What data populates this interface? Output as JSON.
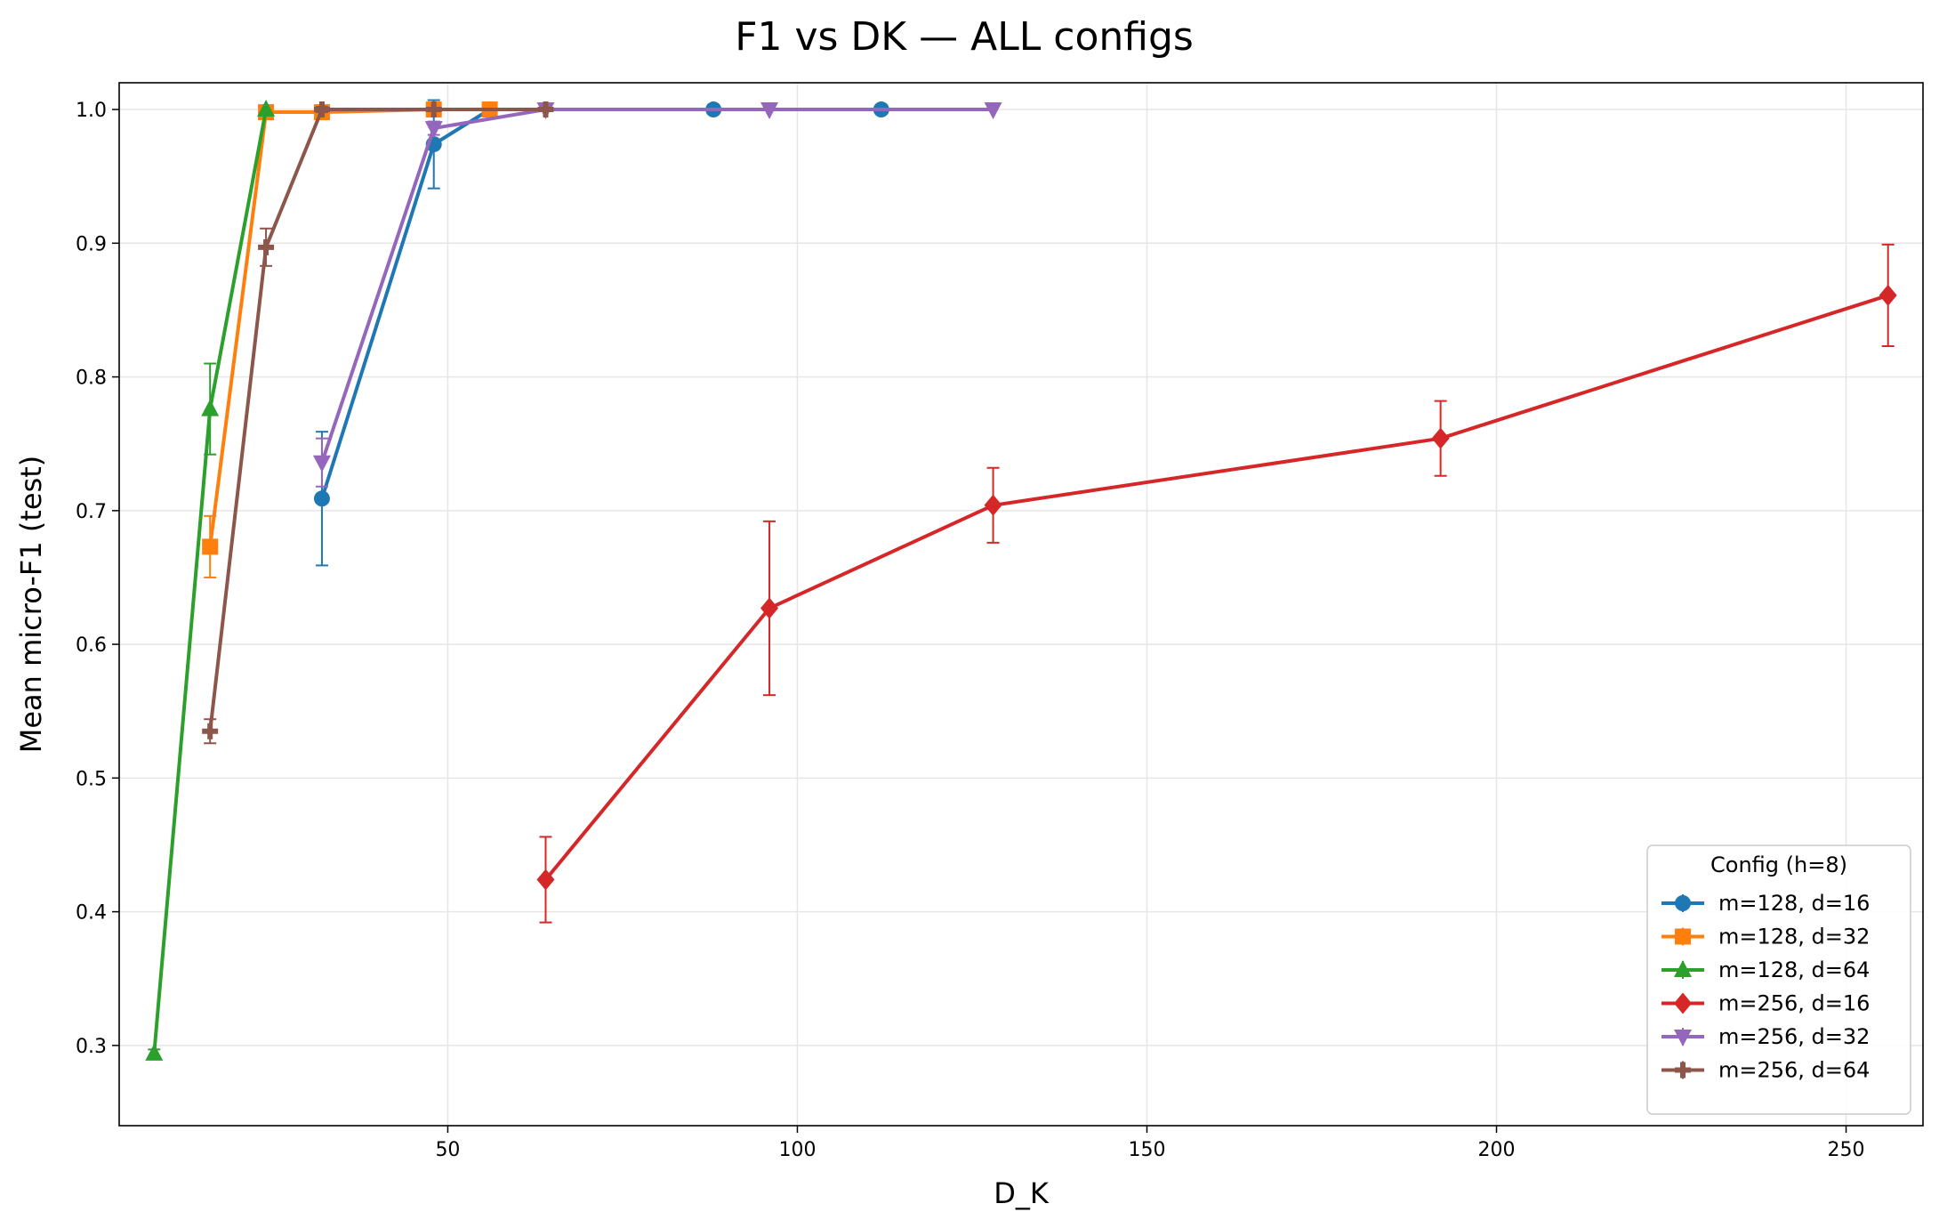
{
  "chart_data": {
    "type": "line",
    "title": "F1 vs DK — ALL configs",
    "xlabel": "D_K",
    "ylabel": "Mean micro-F1 (test)",
    "xlim": [
      3,
      261
    ],
    "ylim": [
      0.24,
      1.02
    ],
    "xticks": [
      50,
      100,
      150,
      200,
      250
    ],
    "yticks": [
      0.3,
      0.4,
      0.5,
      0.6,
      0.7,
      0.8,
      0.9,
      1.0
    ],
    "grid": true,
    "legend": {
      "title": "Config (h=8)",
      "position": "lower-right"
    },
    "series": [
      {
        "name": "m=128, d=16",
        "color": "#1f77b4",
        "marker": "circle",
        "x": [
          32,
          48,
          56,
          88,
          112
        ],
        "y": [
          0.709,
          0.974,
          1.0,
          1.0,
          1.0
        ],
        "err": [
          0.05,
          0.033,
          0.0,
          0.0,
          0.0
        ]
      },
      {
        "name": "m=128, d=32",
        "color": "#ff7f0e",
        "marker": "square",
        "x": [
          16,
          24,
          32,
          48,
          56
        ],
        "y": [
          0.673,
          0.998,
          0.998,
          1.0,
          1.0
        ],
        "err": [
          0.023,
          0.002,
          0.002,
          0.0,
          0.0
        ]
      },
      {
        "name": "m=128, d=64",
        "color": "#2ca02c",
        "marker": "triangle-up",
        "x": [
          8,
          16,
          24
        ],
        "y": [
          0.294,
          0.776,
          1.0
        ],
        "err": [
          0.003,
          0.034,
          0.0
        ]
      },
      {
        "name": "m=256, d=16",
        "color": "#d62728",
        "marker": "diamond",
        "x": [
          64,
          96,
          128,
          192,
          256
        ],
        "y": [
          0.424,
          0.627,
          0.704,
          0.754,
          0.861
        ],
        "err": [
          0.032,
          0.065,
          0.028,
          0.028,
          0.038
        ]
      },
      {
        "name": "m=256, d=32",
        "color": "#9467bd",
        "marker": "triangle-down",
        "x": [
          32,
          48,
          64,
          96,
          128
        ],
        "y": [
          0.736,
          0.986,
          1.0,
          1.0,
          1.0
        ],
        "err": [
          0.018,
          0.005,
          0.0,
          0.0,
          0.0
        ]
      },
      {
        "name": "m=256, d=64",
        "color": "#8c564b",
        "marker": "plus",
        "x": [
          16,
          24,
          32,
          48,
          64
        ],
        "y": [
          0.535,
          0.897,
          1.0,
          1.0,
          1.0
        ],
        "err": [
          0.009,
          0.014,
          0.002,
          0.0,
          0.0
        ]
      }
    ]
  }
}
